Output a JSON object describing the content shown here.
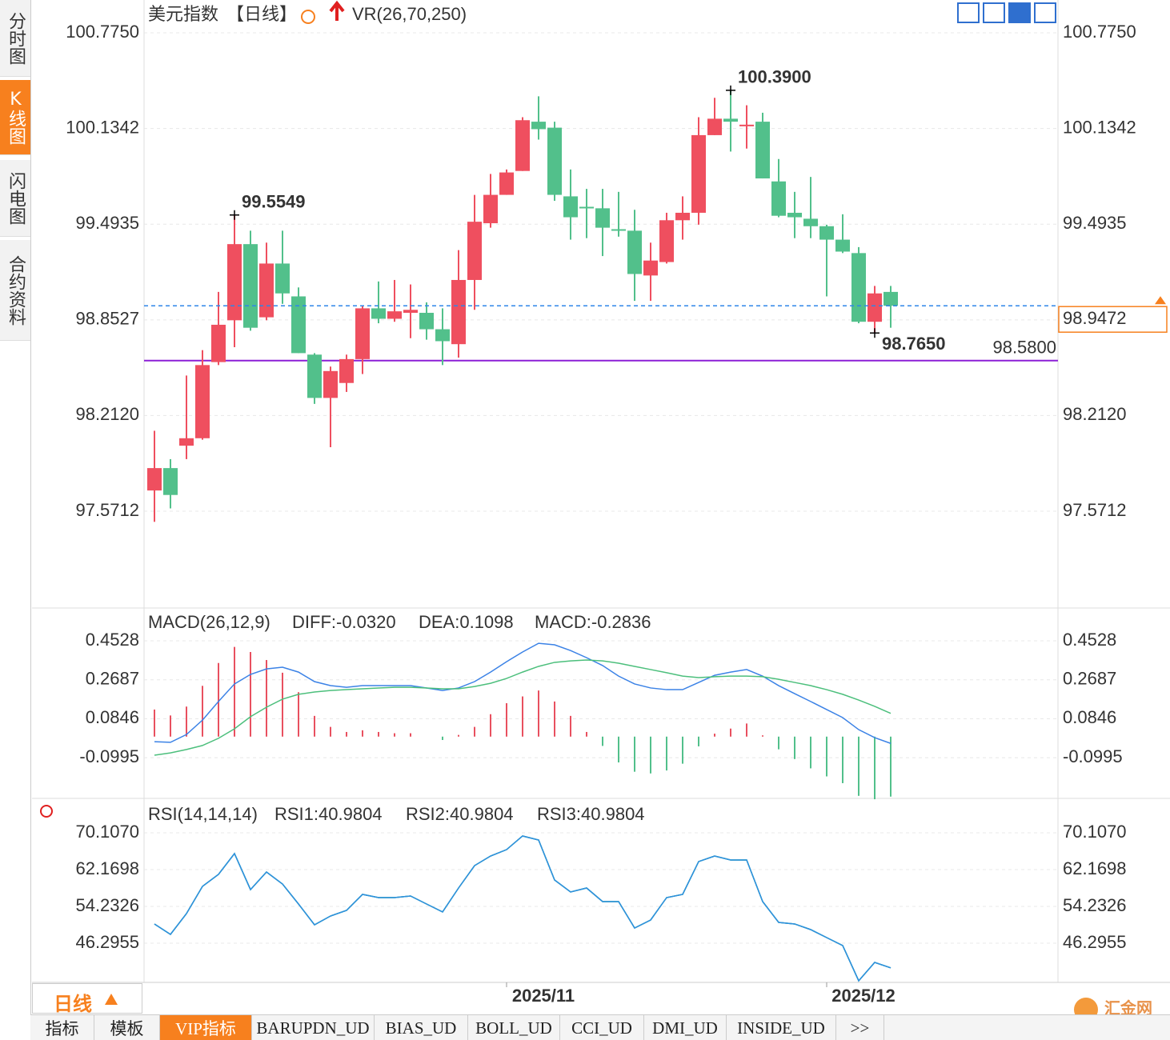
{
  "sidebar": [
    "分时图",
    "K线图",
    "闪电图",
    "合约资料"
  ],
  "period_button": "日线",
  "tabs": [
    "指标",
    "模板",
    "VIP指标",
    "BARUPDN_UD",
    "BIAS_UD",
    "BOLL_UD",
    "CCI_UD",
    "DMI_UD",
    "INSIDE_UD",
    ">>"
  ],
  "logo": "汇金网",
  "chart_data": [
    {
      "type": "candlestick",
      "title": "美元指数",
      "period": "【日线】",
      "indicator": "VR(26,70,250)",
      "categories": [
        null,
        null,
        null,
        null,
        null,
        null,
        null,
        null,
        null,
        null,
        null,
        null,
        null,
        null,
        null,
        null,
        null,
        null,
        null,
        null,
        null,
        null,
        "2025/11",
        null,
        null,
        null,
        null,
        null,
        null,
        null,
        null,
        null,
        null,
        null,
        null,
        null,
        null,
        null,
        null,
        null,
        null,
        null,
        "2025/12",
        null,
        null,
        null,
        null
      ],
      "open": [
        97.71,
        97.86,
        98.01,
        98.06,
        98.57,
        98.85,
        99.36,
        98.87,
        99.23,
        99.01,
        98.62,
        98.33,
        98.43,
        98.59,
        98.93,
        98.86,
        98.9,
        98.9,
        98.79,
        98.69,
        99.12,
        99.5,
        99.69,
        99.85,
        100.18,
        100.14,
        99.68,
        99.61,
        99.6,
        99.46,
        99.45,
        99.15,
        99.24,
        99.52,
        99.57,
        100.09,
        100.2,
        100.15,
        100.18,
        99.78,
        99.57,
        99.53,
        99.48,
        99.39,
        99.3,
        98.84,
        99.04
      ],
      "high": [
        98.11,
        97.92,
        98.48,
        98.65,
        99.04,
        99.5549,
        99.45,
        99.37,
        99.45,
        99.07,
        98.63,
        98.54,
        98.62,
        98.95,
        99.11,
        99.12,
        99.09,
        98.97,
        98.93,
        99.32,
        99.69,
        99.83,
        99.86,
        100.21,
        100.35,
        100.18,
        99.86,
        99.73,
        99.73,
        99.71,
        99.59,
        99.37,
        99.57,
        99.68,
        100.21,
        100.34,
        100.39,
        100.29,
        100.24,
        99.93,
        99.71,
        99.81,
        99.49,
        99.56,
        99.34,
        99.08,
        99.08
      ],
      "low": [
        97.5,
        97.59,
        97.92,
        98.05,
        98.55,
        98.67,
        98.78,
        98.85,
        98.96,
        98.63,
        98.29,
        98.0,
        98.37,
        98.49,
        98.83,
        98.84,
        98.73,
        98.72,
        98.55,
        98.6,
        98.92,
        99.47,
        99.69,
        99.85,
        100.06,
        99.65,
        99.39,
        99.4,
        99.28,
        99.41,
        98.98,
        98.98,
        99.23,
        99.39,
        99.49,
        100.09,
        99.98,
        100.0,
        99.8,
        99.54,
        99.4,
        99.4,
        99.01,
        99.3,
        98.83,
        98.765,
        98.8
      ],
      "close": [
        97.86,
        97.68,
        98.06,
        98.55,
        98.82,
        99.36,
        98.8,
        99.23,
        99.03,
        98.63,
        98.33,
        98.51,
        98.59,
        98.93,
        98.86,
        98.91,
        98.92,
        98.79,
        98.71,
        99.12,
        99.51,
        99.69,
        99.84,
        100.19,
        100.13,
        99.69,
        99.54,
        99.6,
        99.47,
        99.45,
        99.16,
        99.25,
        99.52,
        99.57,
        100.09,
        100.2,
        100.18,
        100.16,
        99.8,
        99.55,
        99.54,
        99.48,
        99.39,
        99.31,
        98.84,
        99.03,
        98.9472
      ],
      "up_color": "#ef4f5f",
      "down_color": "#52c08b",
      "ylim": [
        96.923,
        100.995
      ],
      "yticks": [
        {
          "value": 100.775,
          "label": "100.7750"
        },
        100.1342,
        99.4935,
        98.8527,
        {
          "value": 98.212,
          "label": "98.2120"
        },
        97.5712
      ],
      "grid": true,
      "annotations": [
        {
          "value": 99.5549,
          "label": "99.5549",
          "color": "#ef4f5f"
        },
        {
          "value": 100.39,
          "label": "100.3900",
          "color": "#ef4f5f"
        },
        {
          "value": 98.765,
          "label": "98.7650",
          "color": "#5cc98a"
        }
      ],
      "hline": {
        "value": 98.58,
        "label": "98.5800",
        "color": "#8b1fd6"
      },
      "last_price": {
        "value": 98.9472,
        "label": "98.9472",
        "color": "#f7801e",
        "line_color": "#2e86e8"
      }
    },
    {
      "type": "macd",
      "title": "MACD(26,12,9)",
      "series": [
        {
          "name": "DIFF:-0.0320",
          "color": "#3b82e6",
          "values": [
            -0.024,
            -0.027,
            0.01,
            0.078,
            0.166,
            0.249,
            0.294,
            0.32,
            0.328,
            0.305,
            0.26,
            0.241,
            0.233,
            0.241,
            0.241,
            0.241,
            0.241,
            0.23,
            0.218,
            0.23,
            0.26,
            0.305,
            0.354,
            0.4,
            0.441,
            0.434,
            0.407,
            0.373,
            0.336,
            0.286,
            0.249,
            0.23,
            0.222,
            0.222,
            0.256,
            0.29,
            0.305,
            0.317,
            0.286,
            0.241,
            0.203,
            0.166,
            0.128,
            0.09,
            0.033,
            -0.005,
            -0.032
          ]
        },
        {
          "name": "DEA:0.1098",
          "color": "#4cbf7c",
          "values": [
            -0.088,
            -0.077,
            -0.061,
            -0.042,
            -0.008,
            0.037,
            0.094,
            0.139,
            0.177,
            0.2,
            0.211,
            0.218,
            0.222,
            0.226,
            0.23,
            0.233,
            0.233,
            0.23,
            0.226,
            0.226,
            0.237,
            0.252,
            0.275,
            0.305,
            0.332,
            0.351,
            0.358,
            0.362,
            0.358,
            0.347,
            0.332,
            0.317,
            0.302,
            0.286,
            0.279,
            0.283,
            0.286,
            0.286,
            0.283,
            0.271,
            0.256,
            0.241,
            0.222,
            0.2,
            0.173,
            0.143,
            0.1098
          ]
        },
        {
          "name": "MACD:-0.2836",
          "color": "#4ab0e8",
          "type": "bar",
          "up_color": "#e8505f",
          "down_color": "#52c08b",
          "values": [
            0.128,
            0.1,
            0.142,
            0.24,
            0.348,
            0.424,
            0.4,
            0.362,
            0.302,
            0.21,
            0.098,
            0.046,
            0.022,
            0.03,
            0.022,
            0.016,
            0.016,
            0,
            -0.016,
            0.008,
            0.046,
            0.106,
            0.158,
            0.19,
            0.218,
            0.166,
            0.098,
            0.022,
            -0.044,
            -0.122,
            -0.166,
            -0.174,
            -0.16,
            -0.128,
            -0.046,
            0.014,
            0.038,
            0.062,
            0.006,
            -0.06,
            -0.106,
            -0.15,
            -0.188,
            -0.22,
            -0.28,
            -0.296,
            -0.2836
          ]
        }
      ],
      "ylim": [
        -0.292,
        0.589
      ],
      "yticks": [
        0.4528,
        0.2687,
        0.0846,
        -0.0995
      ],
      "grid": true
    },
    {
      "type": "line",
      "title": "RSI(14,14,14)",
      "series": [
        {
          "name": "RSI1:40.9804",
          "color": "#2e8fe0",
          "values": [
            50.44,
            48.2,
            52.68,
            58.55,
            61.14,
            65.62,
            57.86,
            61.65,
            59.06,
            54.75,
            50.26,
            52.16,
            53.37,
            56.82,
            56.13,
            56.13,
            56.48,
            54.75,
            53.03,
            58.2,
            63.03,
            65.1,
            66.48,
            69.42,
            68.55,
            59.93,
            57.34,
            58.2,
            55.27,
            55.27,
            49.57,
            51.3,
            56.13,
            56.82,
            63.9,
            65.1,
            64.24,
            64.24,
            55.27,
            50.78,
            50.44,
            49.23,
            47.5,
            45.78,
            38.19,
            42.15,
            40.9804
          ]
        },
        {
          "name": "RSI2:40.9804",
          "color": "#4cc37c",
          "values": [
            50.44,
            48.2,
            52.68,
            58.55,
            61.14,
            65.62,
            57.86,
            61.65,
            59.06,
            54.75,
            50.26,
            52.16,
            53.37,
            56.82,
            56.13,
            56.13,
            56.48,
            54.75,
            53.03,
            58.2,
            63.03,
            65.1,
            66.48,
            69.42,
            68.55,
            59.93,
            57.34,
            58.2,
            55.27,
            55.27,
            49.57,
            51.3,
            56.13,
            56.82,
            63.9,
            65.1,
            64.24,
            64.24,
            55.27,
            50.78,
            50.44,
            49.23,
            47.5,
            45.78,
            38.19,
            42.15,
            40.9804
          ]
        },
        {
          "name": "RSI3:40.9804",
          "color": "#3a9de6",
          "values": [
            50.44,
            48.2,
            52.68,
            58.55,
            61.14,
            65.62,
            57.86,
            61.65,
            59.06,
            54.75,
            50.26,
            52.16,
            53.37,
            56.82,
            56.13,
            56.13,
            56.48,
            54.75,
            53.03,
            58.2,
            63.03,
            65.1,
            66.48,
            69.42,
            68.55,
            59.93,
            57.34,
            58.2,
            55.27,
            55.27,
            49.57,
            51.3,
            56.13,
            56.82,
            63.9,
            65.1,
            64.24,
            64.24,
            55.27,
            50.78,
            50.44,
            49.23,
            47.5,
            45.78,
            38.19,
            42.15,
            40.9804
          ]
        }
      ],
      "ylim": [
        37.84,
        77.18
      ],
      "yticks": [
        {
          "value": 70.107,
          "label": "70.1070"
        },
        62.1698,
        54.2326,
        46.2955
      ],
      "grid": true
    }
  ]
}
